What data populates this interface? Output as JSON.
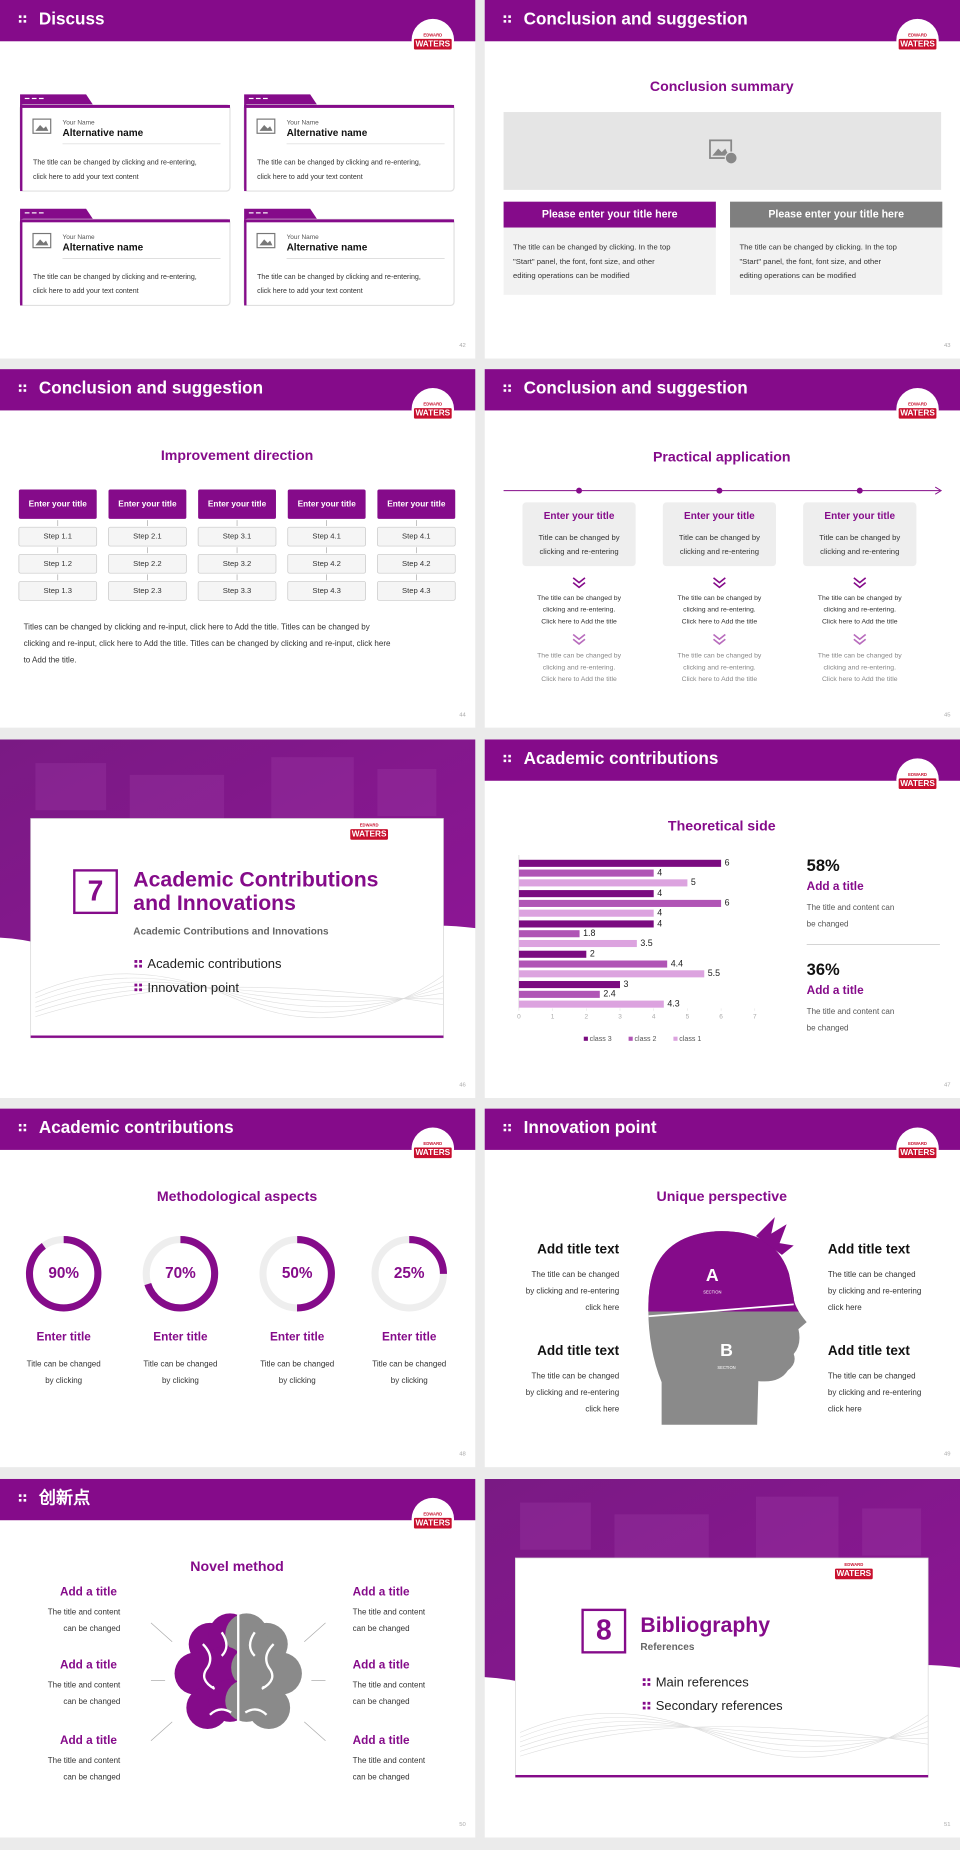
{
  "logo": {
    "top": "EDWARD",
    "main": "WATERS"
  },
  "slides": [
    {
      "title": "Discuss",
      "page": "42",
      "cards": [
        {
          "label": "Your Name",
          "name": "Alternative name",
          "text": [
            "The title can be changed by clicking and re-entering,",
            "click here to add your text content"
          ]
        },
        {
          "label": "Your Name",
          "name": "Alternative name",
          "text": [
            "The title can be changed by clicking and re-entering,",
            "click here to add your text content"
          ]
        },
        {
          "label": "Your Name",
          "name": "Alternative name",
          "text": [
            "The title can be changed by clicking and re-entering,",
            "click here to add your text content"
          ]
        },
        {
          "label": "Your Name",
          "name": "Alternative name",
          "text": [
            "The title can be changed by clicking and re-entering,",
            "click here to add your text content"
          ]
        }
      ]
    },
    {
      "title": "Conclusion and suggestion",
      "page": "43",
      "heading": "Conclusion summary",
      "columns": [
        {
          "title": "Please enter your title here",
          "text": [
            "The title can be changed by clicking. In the top",
            "\"Start\" panel, the font, font size, and other",
            "editing operations can be modified"
          ]
        },
        {
          "title": "Please enter your title here",
          "text": [
            "The title can be changed by clicking. In the top",
            "\"Start\" panel, the font, font size, and other",
            "editing operations can be modified"
          ]
        }
      ]
    },
    {
      "title": "Conclusion and suggestion",
      "page": "44",
      "heading": "Improvement direction",
      "columns": [
        {
          "title": "Enter your title",
          "steps": [
            "Step 1.1",
            "Step 1.2",
            "Step 1.3"
          ]
        },
        {
          "title": "Enter your title",
          "steps": [
            "Step 2.1",
            "Step 2.2",
            "Step 2.3"
          ]
        },
        {
          "title": "Enter your title",
          "steps": [
            "Step 3.1",
            "Step 3.2",
            "Step 3.3"
          ]
        },
        {
          "title": "Enter your title",
          "steps": [
            "Step 4.1",
            "Step 4.2",
            "Step 4.3"
          ]
        },
        {
          "title": "Enter your title",
          "steps": [
            "Step 4.1",
            "Step 4.2",
            "Step 4.3"
          ]
        }
      ],
      "text": [
        "Titles can be changed by clicking and re-input, click here to Add the title. Titles can be changed by",
        "clicking and re-input, click here to Add the title. Titles can be changed by clicking and re-input, click here",
        "to Add the title."
      ]
    },
    {
      "title": "Conclusion and suggestion",
      "page": "45",
      "heading": "Practical application",
      "columns": [
        {
          "title": "Enter your title",
          "text": [
            "Title can be changed by",
            "clicking and re-entering"
          ],
          "notes": [
            [
              "The title can be changed by",
              "clicking and re-entering.",
              "Click here to Add the title"
            ],
            [
              "The title can be changed by",
              "clicking and re-entering.",
              "Click here to Add the title"
            ]
          ]
        },
        {
          "title": "Enter your title",
          "text": [
            "Title can be changed by",
            "clicking and re-entering"
          ],
          "notes": [
            [
              "The title can be changed by",
              "clicking and re-entering.",
              "Click here to Add the title"
            ],
            [
              "The title can be changed by",
              "clicking and re-entering.",
              "Click here to Add the title"
            ]
          ]
        },
        {
          "title": "Enter your title",
          "text": [
            "Title can be changed by",
            "clicking and re-entering"
          ],
          "notes": [
            [
              "The title can be changed by",
              "clicking and re-entering.",
              "Click here to Add the title"
            ],
            [
              "The title can be changed by",
              "clicking and re-entering.",
              "Click here to Add the title"
            ]
          ]
        }
      ]
    },
    {
      "page": "46",
      "number": "7",
      "title_lines": [
        "Academic Contributions",
        "and Innovations"
      ],
      "subtitle": "Academic Contributions and Innovations",
      "items": [
        "Academic contributions",
        "Innovation point"
      ]
    },
    {
      "title": "Academic contributions",
      "page": "47",
      "heading": "Theoretical side",
      "chart_data": {
        "type": "bar",
        "orientation": "horizontal",
        "categories": [
          null,
          null,
          null,
          null,
          null
        ],
        "series": [
          {
            "name": "class 3",
            "color": "#7a0c80",
            "values": [
              6,
              4,
              4,
              2,
              3
            ]
          },
          {
            "name": "class 2",
            "color": "#b055b5",
            "values": [
              4,
              6,
              1.8,
              4.4,
              2.4
            ]
          },
          {
            "name": "class 1",
            "color": "#dca3df",
            "values": [
              5,
              4,
              3.5,
              5.5,
              4.3
            ]
          }
        ],
        "xlim": [
          0,
          7
        ],
        "xticks": [
          0,
          1,
          2,
          3,
          4,
          5,
          6,
          7
        ],
        "grid": false,
        "legend": "bottom"
      },
      "stats": [
        {
          "value": "58%",
          "title": "Add a title",
          "text": [
            "The title and content can",
            "be changed"
          ]
        },
        {
          "value": "36%",
          "title": "Add a title",
          "text": [
            "The title and content can",
            "be changed"
          ]
        }
      ]
    },
    {
      "title": "Academic contributions",
      "page": "48",
      "heading": "Methodological aspects",
      "rings": [
        {
          "value": 90,
          "label": "90%",
          "title": "Enter title",
          "text": [
            "Title can be changed",
            "by clicking"
          ]
        },
        {
          "value": 70,
          "label": "70%",
          "title": "Enter title",
          "text": [
            "Title can be changed",
            "by clicking"
          ]
        },
        {
          "value": 50,
          "label": "50%",
          "title": "Enter title",
          "text": [
            "Title can be changed",
            "by clicking"
          ]
        },
        {
          "value": 25,
          "label": "25%",
          "title": "Enter title",
          "text": [
            "Title can be changed",
            "by clicking"
          ]
        }
      ]
    },
    {
      "title": "Innovation point",
      "page": "49",
      "heading": "Unique perspective",
      "left": [
        {
          "title": "Add title text",
          "text": [
            "The title can be changed",
            "by clicking and re-entering",
            "click here"
          ]
        },
        {
          "title": "Add title text",
          "text": [
            "The title can be changed",
            "by clicking and re-entering",
            "click here"
          ]
        }
      ],
      "right": [
        {
          "title": "Add title text",
          "text": [
            "The title can be changed",
            "by clicking and re-entering",
            "click here"
          ]
        },
        {
          "title": "Add title text",
          "text": [
            "The title can be changed",
            "by clicking and re-entering",
            "click here"
          ]
        }
      ],
      "sections": [
        {
          "letter": "A",
          "label": "SECTION"
        },
        {
          "letter": "B",
          "label": "SECTION"
        }
      ]
    },
    {
      "title": "创新点",
      "page": "50",
      "heading": "Novel method",
      "left": [
        {
          "title": "Add a title",
          "text": [
            "The title and content",
            "can be changed"
          ]
        },
        {
          "title": "Add a title",
          "text": [
            "The title and content",
            "can be changed"
          ]
        },
        {
          "title": "Add a title",
          "text": [
            "The title and content",
            "can be changed"
          ]
        }
      ],
      "right": [
        {
          "title": "Add a title",
          "text": [
            "The title and content",
            "can be changed"
          ]
        },
        {
          "title": "Add a title",
          "text": [
            "The title and content",
            "can be changed"
          ]
        },
        {
          "title": "Add a title",
          "text": [
            "The title and content",
            "can be changed"
          ]
        }
      ]
    },
    {
      "page": "51",
      "number": "8",
      "title_lines": [
        "Bibliography"
      ],
      "subtitle": "References",
      "items": [
        "Main references",
        "Secondary references"
      ]
    }
  ]
}
